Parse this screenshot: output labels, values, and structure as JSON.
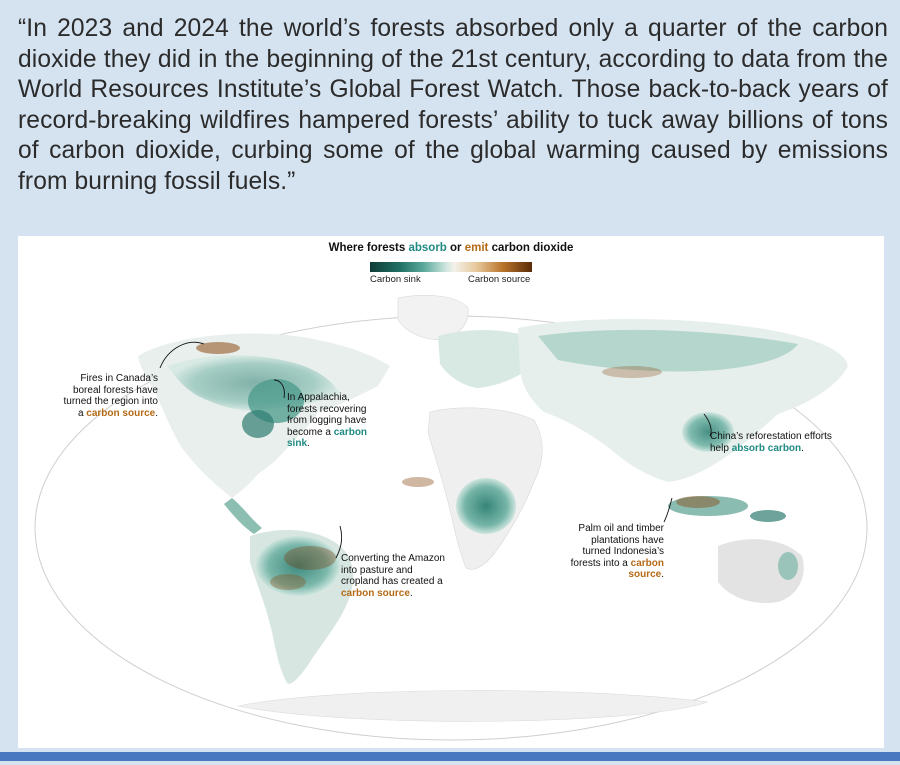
{
  "quote": "“In 2023 and 2024 the world’s forests absorbed only a quarter of the carbon dioxide they did in the beginning of the 21st century, according to data from the World Resources Institute’s Global Forest Watch. Those back-to-back years of record-breaking wildfires hampered forests’ ability to tuck away billions of tons of carbon dioxide, curbing some of the global warming caused by emissions from burning fossil fuels.”",
  "map": {
    "title_prefix": "Where forests",
    "title_absorb": "absorb",
    "title_or": "or",
    "title_emit": "emit",
    "title_suffix": "carbon dioxide",
    "legend_sink": "Carbon sink",
    "legend_source": "Carbon source",
    "colors": {
      "sink": "#1f8a82",
      "source": "#b56a16",
      "land": "#ececec",
      "ocean": "#ffffff"
    },
    "annotations": {
      "canada": {
        "text": "Fires in Canada’s boreal forests have turned the region into a",
        "highlight": "carbon source",
        "end": "."
      },
      "appalachia": {
        "text": "In Appalachia, forests recovering from logging have become a",
        "highlight": "carbon sink",
        "end": "."
      },
      "china": {
        "text": "China’s reforestation efforts help",
        "highlight": "absorb carbon",
        "end": "."
      },
      "amazon": {
        "text": "Converting the Amazon into pasture and cropland has created a",
        "highlight": "carbon source",
        "end": "."
      },
      "indonesia": {
        "text": "Palm oil and timber plantations have turned Indonesia’s forests into a",
        "highlight": "carbon source",
        "end": "."
      }
    }
  }
}
